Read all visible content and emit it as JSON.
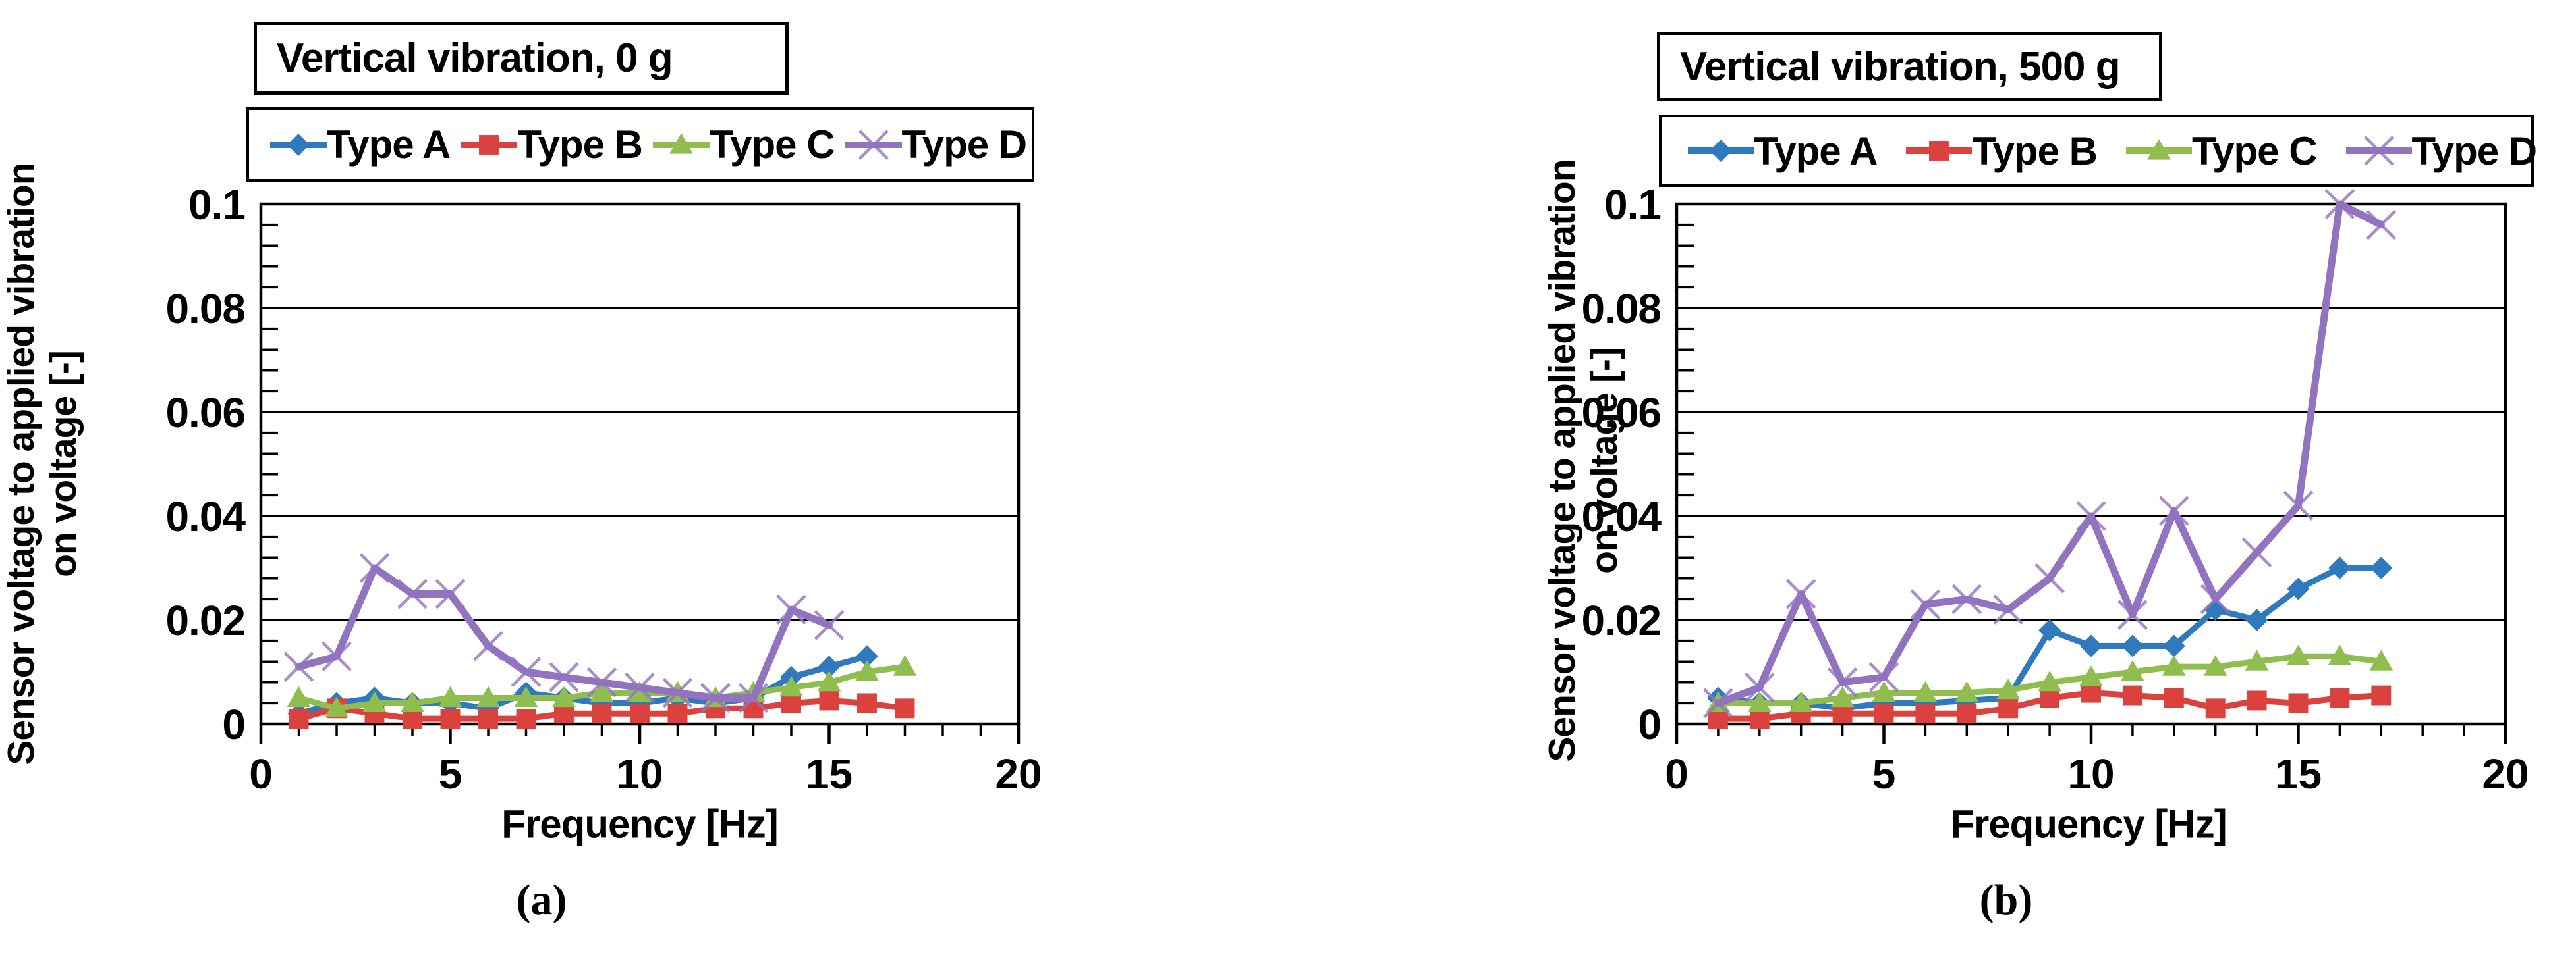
{
  "figure": {
    "caption_a": "(a)",
    "caption_b": "(b)"
  },
  "axes": {
    "x_title": "Frequency  [Hz]",
    "y_title_line1": "Sensor voltage to applied vibration",
    "y_title_line2": "on voltage [-]",
    "x_ticks": [
      0,
      5,
      10,
      15,
      20
    ],
    "x_tick_labels": [
      "0",
      "5",
      "10",
      "15",
      "20"
    ],
    "y_ticks": [
      0,
      0.02,
      0.04,
      0.06,
      0.08,
      0.1
    ],
    "y_tick_labels": [
      "0",
      "0.02",
      "0.04",
      "0.06",
      "0.08",
      "0.1"
    ],
    "x_minor_step": 1,
    "y_minor_step": 0.004
  },
  "colors": {
    "type_a": "#2F79BE",
    "type_b": "#DB423D",
    "type_c": "#8FBE4F",
    "type_d": "#9173BF",
    "axis": "#000000",
    "background": "#FFFFFF"
  },
  "chart_data": [
    {
      "type": "line",
      "title": "Vertical vibration, 0 g",
      "xlabel": "Frequency  [Hz]",
      "ylabel": "Sensor voltage to applied vibration on voltage [-]",
      "xlim": [
        0,
        20
      ],
      "ylim": [
        0,
        0.1
      ],
      "grid": "horizontal-major",
      "legend_position": "top-left",
      "series": [
        {
          "name": "Type A",
          "marker": "diamond",
          "color": "#2F79BE",
          "x": [
            1,
            2,
            3,
            4,
            5,
            6,
            7,
            8,
            9,
            10,
            11,
            12,
            13,
            14,
            15,
            16
          ],
          "y": [
            0.002,
            0.004,
            0.005,
            0.004,
            0.004,
            0.003,
            0.006,
            0.005,
            0.004,
            0.004,
            0.005,
            0.004,
            0.005,
            0.009,
            0.011,
            0.013
          ]
        },
        {
          "name": "Type B",
          "marker": "square",
          "color": "#DB423D",
          "x": [
            1,
            2,
            3,
            4,
            5,
            6,
            7,
            8,
            9,
            10,
            11,
            12,
            13,
            14,
            15,
            16,
            17
          ],
          "y": [
            0.001,
            0.003,
            0.002,
            0.001,
            0.001,
            0.001,
            0.001,
            0.002,
            0.002,
            0.002,
            0.002,
            0.003,
            0.003,
            0.004,
            0.0045,
            0.004,
            0.003
          ]
        },
        {
          "name": "Type C",
          "marker": "triangle",
          "color": "#8FBE4F",
          "x": [
            1,
            2,
            3,
            4,
            5,
            6,
            7,
            8,
            9,
            10,
            11,
            12,
            13,
            14,
            15,
            16,
            17
          ],
          "y": [
            0.005,
            0.003,
            0.004,
            0.004,
            0.005,
            0.005,
            0.005,
            0.005,
            0.006,
            0.006,
            0.006,
            0.005,
            0.006,
            0.007,
            0.008,
            0.01,
            0.011
          ]
        },
        {
          "name": "Type D",
          "marker": "x",
          "color": "#9173BF",
          "x": [
            1,
            2,
            3,
            4,
            5,
            6,
            7,
            8,
            9,
            10,
            11,
            12,
            13,
            14,
            15
          ],
          "y": [
            0.011,
            0.013,
            0.03,
            0.025,
            0.025,
            0.015,
            0.01,
            0.009,
            0.008,
            0.007,
            0.006,
            0.005,
            0.005,
            0.022,
            0.019
          ]
        }
      ]
    },
    {
      "type": "line",
      "title": "Vertical vibration, 500 g",
      "xlabel": "Frequency  [Hz]",
      "ylabel": "Sensor voltage to applied vibration on voltage [-]",
      "xlim": [
        0,
        20
      ],
      "ylim": [
        0,
        0.1
      ],
      "grid": "horizontal-major",
      "legend_position": "top-left",
      "series": [
        {
          "name": "Type A",
          "marker": "diamond",
          "color": "#2F79BE",
          "x": [
            1,
            2,
            3,
            4,
            5,
            6,
            7,
            8,
            9,
            10,
            11,
            12,
            13,
            14,
            15,
            16,
            17
          ],
          "y": [
            0.005,
            0.004,
            0.004,
            0.003,
            0.004,
            0.004,
            0.0045,
            0.005,
            0.018,
            0.015,
            0.015,
            0.015,
            0.022,
            0.02,
            0.026,
            0.03,
            0.03
          ]
        },
        {
          "name": "Type B",
          "marker": "square",
          "color": "#DB423D",
          "x": [
            1,
            2,
            3,
            4,
            5,
            6,
            7,
            8,
            9,
            10,
            11,
            12,
            13,
            14,
            15,
            16,
            17
          ],
          "y": [
            0.001,
            0.001,
            0.002,
            0.002,
            0.002,
            0.002,
            0.002,
            0.003,
            0.005,
            0.006,
            0.0055,
            0.005,
            0.003,
            0.0045,
            0.004,
            0.005,
            0.0055
          ]
        },
        {
          "name": "Type C",
          "marker": "triangle",
          "color": "#8FBE4F",
          "x": [
            1,
            2,
            3,
            4,
            5,
            6,
            7,
            8,
            9,
            10,
            11,
            12,
            13,
            14,
            15,
            16,
            17
          ],
          "y": [
            0.004,
            0.004,
            0.004,
            0.005,
            0.006,
            0.006,
            0.006,
            0.0065,
            0.008,
            0.009,
            0.01,
            0.011,
            0.011,
            0.012,
            0.013,
            0.013,
            0.012
          ]
        },
        {
          "name": "Type D",
          "marker": "x",
          "color": "#9173BF",
          "x": [
            1,
            2,
            3,
            4,
            5,
            6,
            7,
            8,
            9,
            10,
            11,
            12,
            13,
            14,
            15,
            16,
            17
          ],
          "y": [
            0.004,
            0.007,
            0.025,
            0.008,
            0.009,
            0.023,
            0.024,
            0.022,
            0.028,
            0.04,
            0.021,
            0.041,
            0.024,
            0.033,
            0.042,
            0.1,
            0.096
          ]
        }
      ]
    }
  ]
}
